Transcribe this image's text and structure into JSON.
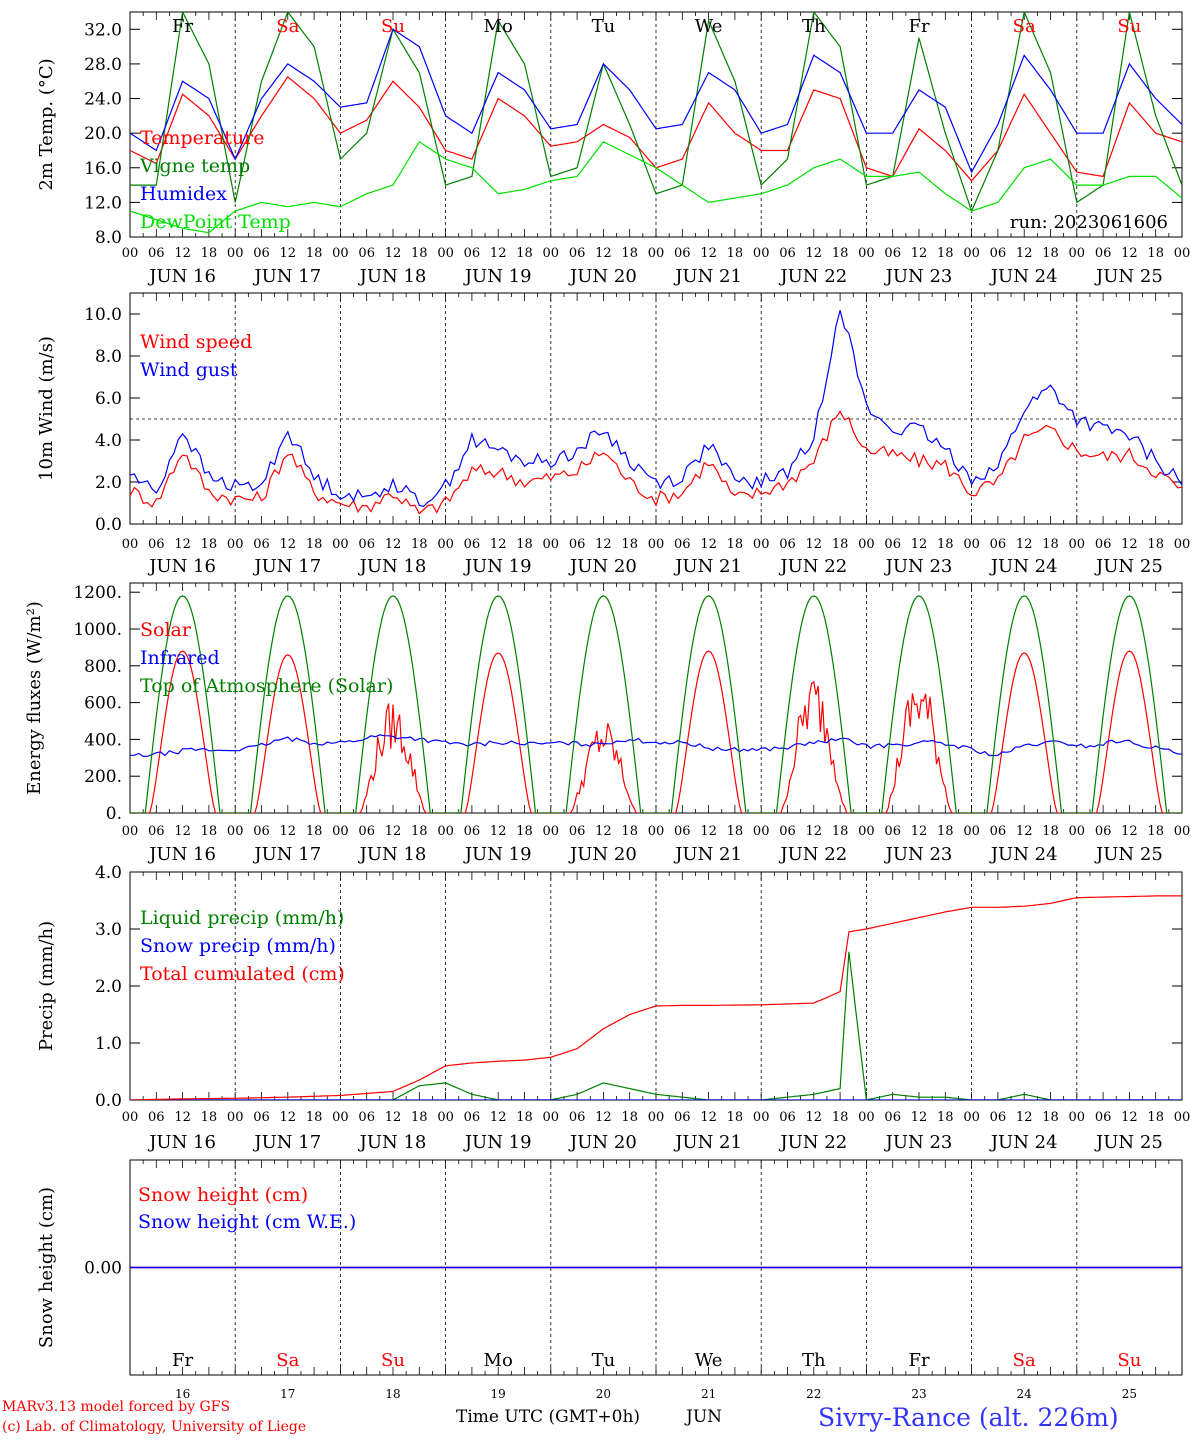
{
  "days": [
    "16",
    "17",
    "18",
    "19",
    "20",
    "21",
    "22",
    "23",
    "24",
    "25"
  ],
  "weekdays": [
    "Fr",
    "Sa",
    "Su",
    "Mo",
    "Tu",
    "We",
    "Th",
    "Fr",
    "Sa",
    "Su"
  ],
  "weekend_flags": [
    false,
    true,
    true,
    false,
    false,
    false,
    false,
    false,
    true,
    true
  ],
  "month": "JUN",
  "hour_labels": [
    "00",
    "06",
    "12",
    "18"
  ],
  "final_hour_label": "00",
  "colors": {
    "red": "#ff0000",
    "green": "#008000",
    "blue": "#0000ff",
    "lightgreen": "#00e000",
    "purple": "#800080",
    "weekend": "#ff0000"
  },
  "footer": {
    "xlabel": "Time UTC (GMT+0h)",
    "month_label": "JUN",
    "model_line": "MARv3.13 model forced by GFS",
    "copyright_line": "(c) Lab. of Climatology, University of Liege",
    "station": "Sivry-Rance (alt. 226m)"
  },
  "chart_data": [
    {
      "type": "line",
      "ylabel": "2m Temp. (°C)",
      "ylim": [
        8,
        34
      ],
      "yticks": [
        8,
        12,
        16,
        20,
        24,
        28,
        32
      ],
      "ytick_labels": [
        "8.0",
        "12.0",
        "16.0",
        "20.0",
        "24.0",
        "28.0",
        "32.0"
      ],
      "annotation": "run: 2023061606",
      "x_hours": [
        0,
        6,
        12,
        18,
        24,
        30,
        36,
        42,
        48,
        54,
        60,
        66,
        72,
        78,
        84,
        90,
        96,
        102,
        108,
        114,
        120,
        126,
        132,
        138,
        144,
        150,
        156,
        162,
        168,
        174,
        180,
        186,
        192,
        198,
        204,
        210,
        216,
        222,
        228,
        234,
        240
      ],
      "series": [
        {
          "name": "Temperature",
          "color": "red",
          "values": [
            18,
            16.5,
            24.5,
            22,
            17,
            22,
            26.5,
            24,
            20,
            21.5,
            26,
            23,
            18,
            17,
            24,
            22,
            18.5,
            19,
            21,
            19.5,
            16,
            17,
            23.5,
            20,
            18,
            18,
            25,
            24,
            16,
            15,
            20.5,
            18,
            14.5,
            18,
            24.5,
            20,
            15.5,
            15,
            23.5,
            20,
            19
          ]
        },
        {
          "name": "Vigne temp",
          "color": "green",
          "values": [
            14,
            14,
            34,
            28,
            12,
            26,
            34,
            30,
            17,
            20,
            32,
            27,
            14,
            15,
            33,
            28,
            15,
            16,
            28,
            21,
            13,
            14,
            33,
            26,
            14,
            17,
            34,
            30,
            14,
            15,
            31,
            20,
            11,
            18,
            34,
            27,
            12,
            14,
            34,
            22,
            14
          ]
        },
        {
          "name": "Humidex",
          "color": "blue",
          "values": [
            20,
            18,
            26,
            24,
            17,
            24,
            28,
            26,
            23,
            23.5,
            32,
            30,
            22,
            20,
            27,
            25,
            20.5,
            21,
            28,
            25,
            20.5,
            21,
            27,
            25,
            20,
            21,
            29,
            27,
            20,
            20,
            25,
            23,
            15.5,
            21,
            29,
            25,
            20,
            20,
            28,
            24,
            21
          ]
        },
        {
          "name": "DewPoint Temp",
          "color": "lightgreen",
          "values": [
            11,
            10,
            9,
            8.5,
            11,
            12,
            11.5,
            12,
            11.5,
            13,
            14,
            19,
            17,
            16,
            13,
            13.5,
            14.5,
            15,
            19,
            17.5,
            16,
            14,
            12,
            12.5,
            13,
            14,
            16,
            17,
            15,
            15,
            15.5,
            13,
            11,
            12,
            16,
            17,
            14,
            14,
            15,
            15,
            12.5
          ]
        }
      ]
    },
    {
      "type": "line",
      "ylabel": "10m Wind (m/s)",
      "ylim": [
        0,
        11
      ],
      "yticks": [
        0,
        2,
        4,
        6,
        8,
        10
      ],
      "ytick_labels": [
        "0.0",
        "2.0",
        "4.0",
        "6.0",
        "8.0",
        "10.0"
      ],
      "reference_line": 5,
      "x_hours": [
        0,
        6,
        12,
        18,
        24,
        30,
        36,
        42,
        48,
        54,
        60,
        66,
        72,
        78,
        84,
        90,
        96,
        102,
        108,
        114,
        120,
        126,
        132,
        138,
        144,
        150,
        156,
        162,
        168,
        174,
        180,
        186,
        192,
        198,
        204,
        210,
        216,
        222,
        228,
        234,
        240
      ],
      "series": [
        {
          "name": "Wind speed",
          "color": "red",
          "values": [
            1.6,
            1,
            3.5,
            1.5,
            1.2,
            1.2,
            3.5,
            1.5,
            1,
            0.8,
            1.5,
            0.5,
            1,
            2.5,
            2.5,
            2,
            2.2,
            2.5,
            3.5,
            2,
            1.2,
            1.5,
            3,
            1.2,
            1.5,
            2,
            3,
            5.5,
            3.5,
            3.3,
            3,
            2.8,
            1.5,
            2,
            4,
            4.5,
            3.5,
            3.2,
            3.3,
            2.5,
            1.6
          ]
        },
        {
          "name": "Wind gust",
          "color": "blue",
          "values": [
            2.4,
            1.5,
            4.5,
            2.2,
            1.8,
            1.8,
            4.5,
            2.2,
            1.5,
            1.2,
            2,
            1,
            1.8,
            4,
            3.5,
            3,
            3,
            3.5,
            4.5,
            3,
            2,
            2.2,
            3.8,
            2,
            2,
            2.5,
            4,
            10.5,
            5.5,
            4.5,
            4.5,
            3.5,
            2.2,
            2.7,
            5.5,
            6.5,
            5,
            4.5,
            4.2,
            3,
            2
          ]
        }
      ]
    },
    {
      "type": "line",
      "ylabel": "Energy fluxes (W/m²)",
      "ylim": [
        0,
        1250
      ],
      "yticks": [
        0,
        200,
        400,
        600,
        800,
        1000,
        1200
      ],
      "ytick_labels": [
        "0.",
        "200.",
        "400.",
        "600.",
        "800.",
        "1000.",
        "1200."
      ],
      "series": [
        {
          "name": "Solar",
          "color": "red",
          "daily_peak": [
            880,
            860,
            620,
            870,
            520,
            880,
            780,
            780,
            870,
            880
          ]
        },
        {
          "name": "Infrared",
          "color": "blue",
          "values": [
            310,
            320,
            345,
            340,
            355,
            405,
            380,
            385,
            420,
            410,
            385,
            370,
            385,
            375,
            380,
            370,
            400,
            385,
            380,
            345,
            345,
            350,
            380,
            400,
            360,
            375,
            385,
            355,
            310,
            370,
            385,
            360,
            395,
            360,
            320
          ]
        },
        {
          "name": "Top of Atmosphere (Solar)",
          "color": "green",
          "daily_peak": [
            1180,
            1180,
            1180,
            1180,
            1180,
            1180,
            1180,
            1180,
            1180,
            1180
          ]
        }
      ]
    },
    {
      "type": "line",
      "ylabel": "Precip (mm/h)",
      "ylim": [
        0,
        4
      ],
      "yticks": [
        0,
        1,
        2,
        3,
        4
      ],
      "ytick_labels": [
        "0.0",
        "1.0",
        "2.0",
        "3.0",
        "4.0"
      ],
      "x_hours": [
        0,
        12,
        24,
        36,
        48,
        60,
        66,
        72,
        78,
        84,
        90,
        96,
        102,
        108,
        114,
        120,
        126,
        132,
        144,
        156,
        162,
        164,
        168,
        174,
        180,
        186,
        192,
        198,
        204,
        210,
        216,
        222,
        228,
        234,
        240
      ],
      "series": [
        {
          "name": "Liquid precip (mm/h)",
          "color": "green",
          "values": [
            0,
            0,
            0,
            0,
            0,
            0,
            0.25,
            0.3,
            0.1,
            0,
            0,
            0,
            0.1,
            0.3,
            0.2,
            0.1,
            0.05,
            0,
            0,
            0.1,
            0.2,
            2.6,
            0,
            0.1,
            0.05,
            0.05,
            0,
            0,
            0.1,
            0,
            0,
            0,
            0,
            0,
            0
          ]
        },
        {
          "name": "Snow precip (mm/h)",
          "color": "blue",
          "values": [
            0,
            0,
            0,
            0,
            0,
            0,
            0,
            0,
            0,
            0,
            0,
            0,
            0,
            0,
            0,
            0,
            0,
            0,
            0,
            0,
            0,
            0,
            0,
            0,
            0,
            0,
            0,
            0,
            0,
            0,
            0,
            0,
            0,
            0,
            0
          ]
        },
        {
          "name": "Total cumulated (cm)",
          "color": "red",
          "values": [
            0,
            0.02,
            0.03,
            0.05,
            0.08,
            0.15,
            0.35,
            0.6,
            0.65,
            0.68,
            0.7,
            0.75,
            0.9,
            1.25,
            1.5,
            1.65,
            1.66,
            1.66,
            1.67,
            1.7,
            1.9,
            2.95,
            3.0,
            3.1,
            3.2,
            3.3,
            3.38,
            3.38,
            3.4,
            3.45,
            3.55,
            3.56,
            3.57,
            3.58,
            3.58
          ]
        }
      ]
    },
    {
      "type": "line",
      "ylabel": "Snow height (cm)",
      "ylim": [
        -1,
        1
      ],
      "yticks": [
        0
      ],
      "ytick_labels": [
        "0.00"
      ],
      "series": [
        {
          "name": "Snow height (cm)",
          "color": "red",
          "values": [
            0,
            0
          ]
        },
        {
          "name": "Snow height (cm W.E.)",
          "color": "blue",
          "values": [
            0,
            0
          ]
        }
      ]
    }
  ]
}
